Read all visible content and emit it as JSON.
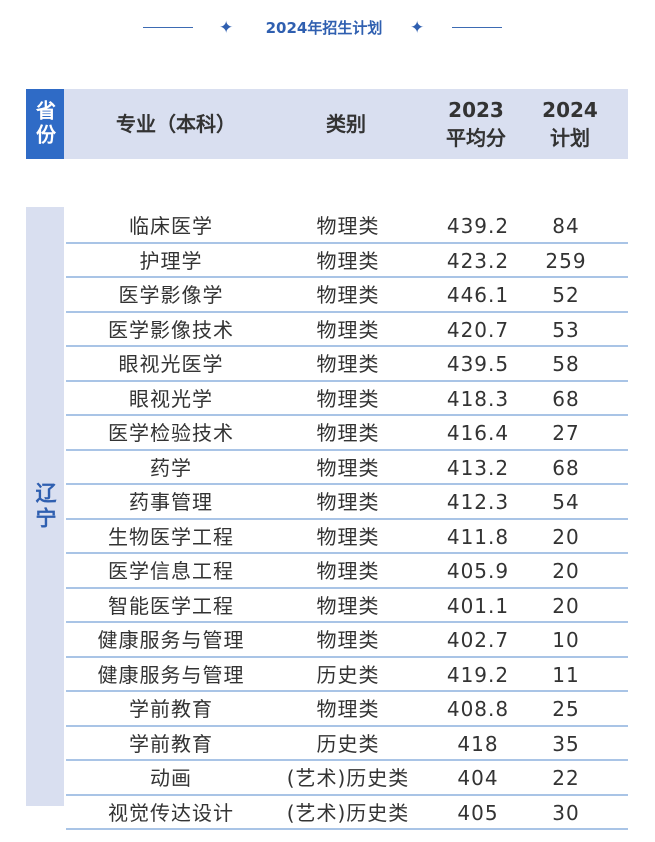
{
  "title": "2024年招生计划",
  "header": {
    "province": "省份",
    "major": "专业（本科）",
    "category": "类别",
    "score_2023": "2023\n平均分",
    "plan_2024": "2024\n计划"
  },
  "province": "辽宁",
  "rows": [
    {
      "major": "临床医学",
      "category": "物理类",
      "score_2023": "439.2",
      "plan_2024": "84"
    },
    {
      "major": "护理学",
      "category": "物理类",
      "score_2023": "423.2",
      "plan_2024": "259"
    },
    {
      "major": "医学影像学",
      "category": "物理类",
      "score_2023": "446.1",
      "plan_2024": "52"
    },
    {
      "major": "医学影像技术",
      "category": "物理类",
      "score_2023": "420.7",
      "plan_2024": "53"
    },
    {
      "major": "眼视光医学",
      "category": "物理类",
      "score_2023": "439.5",
      "plan_2024": "58"
    },
    {
      "major": "眼视光学",
      "category": "物理类",
      "score_2023": "418.3",
      "plan_2024": "68"
    },
    {
      "major": "医学检验技术",
      "category": "物理类",
      "score_2023": "416.4",
      "plan_2024": "27"
    },
    {
      "major": "药学",
      "category": "物理类",
      "score_2023": "413.2",
      "plan_2024": "68"
    },
    {
      "major": "药事管理",
      "category": "物理类",
      "score_2023": "412.3",
      "plan_2024": "54"
    },
    {
      "major": "生物医学工程",
      "category": "物理类",
      "score_2023": "411.8",
      "plan_2024": "20"
    },
    {
      "major": "医学信息工程",
      "category": "物理类",
      "score_2023": "405.9",
      "plan_2024": "20"
    },
    {
      "major": "智能医学工程",
      "category": "物理类",
      "score_2023": "401.1",
      "plan_2024": "20"
    },
    {
      "major": "健康服务与管理",
      "category": "物理类",
      "score_2023": "402.7",
      "plan_2024": "10"
    },
    {
      "major": "健康服务与管理",
      "category": "历史类",
      "score_2023": "419.2",
      "plan_2024": "11"
    },
    {
      "major": "学前教育",
      "category": "物理类",
      "score_2023": "408.8",
      "plan_2024": "25"
    },
    {
      "major": "学前教育",
      "category": "历史类",
      "score_2023": "418",
      "plan_2024": "35"
    },
    {
      "major": "动画",
      "category": "(艺术)历史类",
      "score_2023": "404",
      "plan_2024": "22"
    },
    {
      "major": "视觉传达设计",
      "category": "(艺术)历史类",
      "score_2023": "405",
      "plan_2024": "30"
    }
  ],
  "colors": {
    "accent": "#2f6bc6",
    "title": "#2f5fb0",
    "header_bg": "#d9dff0",
    "row_line": "#a9c4e6"
  }
}
